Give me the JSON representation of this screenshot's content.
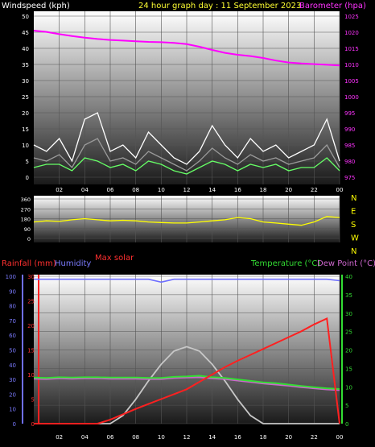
{
  "header": {
    "left_title": "Windspeed (kph)",
    "center_title": "24 hour graph day : 11 September 2023",
    "right_title": "Barometer (hpa)"
  },
  "bottom_header": {
    "rain_label": "Rainfall (mm)",
    "humidity_label": "Humidity",
    "solar_label": "Max solar",
    "temp_label": "Temperature (°C)",
    "dew_label": "Dew Point (°C)"
  },
  "colors": {
    "wind_gust": "#ffffff",
    "wind_avg": "#9a9a9a",
    "wind_low": "#66ff66",
    "barometer": "#ff00ff",
    "direction": "#ffff00",
    "rainfall": "#ff2020",
    "humidity": "#6f6fff",
    "temperature": "#33dd33",
    "dewpoint": "#cc66cc",
    "solar": "#c8c8c8"
  },
  "chart_data": [
    {
      "type": "line",
      "title": "24 hour graph day : 11 September 2023",
      "x_ticks": [
        "02",
        "04",
        "06",
        "08",
        "10",
        "12",
        "14",
        "16",
        "18",
        "20",
        "22",
        "00"
      ],
      "x": [
        0,
        1,
        2,
        3,
        4,
        5,
        6,
        7,
        8,
        9,
        10,
        11,
        12,
        13,
        14,
        15,
        16,
        17,
        18,
        19,
        20,
        21,
        22,
        23,
        24
      ],
      "left_axis": {
        "label": "Windspeed (kph)",
        "ticks": [
          "0",
          "5",
          "10",
          "15",
          "20",
          "25",
          "30",
          "35",
          "40",
          "45",
          "50"
        ],
        "ylim": [
          0,
          50
        ]
      },
      "right_axis": {
        "label": "Barometer (hpa)",
        "ticks": [
          "975",
          "980",
          "985",
          "990",
          "995",
          "1000",
          "1005",
          "1010",
          "1015",
          "1020",
          "1025"
        ],
        "ylim": [
          975,
          1025
        ]
      },
      "series": [
        {
          "name": "Windspeed (kph)",
          "axis": "left",
          "kind": "gust",
          "values": [
            10,
            8,
            12,
            5,
            18,
            20,
            8,
            10,
            6,
            14,
            10,
            6,
            4,
            8,
            16,
            10,
            6,
            12,
            8,
            10,
            6,
            8,
            10,
            18,
            5
          ]
        },
        {
          "name": "Windspeed (kph)",
          "axis": "left",
          "kind": "average",
          "values": [
            6,
            5,
            7,
            3,
            10,
            12,
            5,
            6,
            4,
            8,
            6,
            4,
            2,
            5,
            9,
            6,
            4,
            7,
            5,
            6,
            4,
            5,
            6,
            10,
            3
          ]
        },
        {
          "name": "Windspeed (kph)",
          "axis": "left",
          "kind": "low",
          "values": [
            3,
            4,
            4,
            2,
            6,
            5,
            3,
            4,
            2,
            5,
            4,
            2,
            1,
            3,
            5,
            4,
            2,
            4,
            3,
            4,
            2,
            3,
            3,
            6,
            2
          ]
        },
        {
          "name": "Barometer (hpa)",
          "axis": "right",
          "values": [
            1020.5,
            1020.1,
            1019.4,
            1018.8,
            1018.3,
            1017.9,
            1017.6,
            1017.4,
            1017.2,
            1017.0,
            1016.9,
            1016.7,
            1016.3,
            1015.5,
            1014.5,
            1013.6,
            1013.0,
            1012.6,
            1012.0,
            1011.2,
            1010.6,
            1010.3,
            1010.1,
            1009.9,
            1009.7
          ]
        }
      ]
    },
    {
      "type": "scatter",
      "x_ticks": [
        "02",
        "04",
        "06",
        "08",
        "10",
        "12",
        "14",
        "16",
        "18",
        "20",
        "22",
        "00"
      ],
      "left_axis": {
        "ticks": [
          "0",
          "90",
          "180",
          "270",
          "360"
        ],
        "ylim": [
          0,
          360
        ]
      },
      "right_axis": {
        "ticks": [
          "N",
          "W",
          "S",
          "E",
          "N"
        ]
      },
      "series": [
        {
          "name": "Wind direction",
          "x": [
            0,
            1,
            2,
            3,
            4,
            5,
            6,
            7,
            8,
            9,
            10,
            11,
            12,
            13,
            14,
            15,
            16,
            17,
            18,
            19,
            20,
            21,
            22,
            23,
            24
          ],
          "values": [
            150,
            160,
            155,
            170,
            180,
            170,
            160,
            165,
            160,
            150,
            145,
            140,
            140,
            150,
            160,
            170,
            190,
            180,
            150,
            140,
            130,
            120,
            150,
            200,
            190
          ]
        }
      ]
    },
    {
      "type": "line",
      "x_ticks": [
        "02",
        "04",
        "06",
        "08",
        "10",
        "12",
        "14",
        "16",
        "18",
        "20",
        "22",
        "00"
      ],
      "x": [
        0,
        1,
        2,
        3,
        4,
        5,
        6,
        7,
        8,
        9,
        10,
        11,
        12,
        13,
        14,
        15,
        16,
        17,
        18,
        19,
        20,
        21,
        22,
        23,
        24
      ],
      "left_axis_humidity": {
        "label": "Humidity",
        "ticks": [
          "0",
          "10",
          "20",
          "30",
          "40",
          "50",
          "60",
          "70",
          "80",
          "90",
          "100"
        ],
        "ylim": [
          0,
          100
        ]
      },
      "left_axis_rain": {
        "label": "Rainfall (mm)",
        "ticks": [
          "0",
          "5",
          "10",
          "15",
          "20",
          "25",
          "30"
        ],
        "ylim": [
          0,
          30
        ]
      },
      "right_axis": {
        "label": "Temperature (°C)",
        "ticks": [
          "0",
          "5",
          "10",
          "15",
          "20",
          "25",
          "30",
          "35",
          "40"
        ],
        "ylim": [
          0,
          40
        ]
      },
      "series": [
        {
          "name": "Humidity",
          "axis": "humidity",
          "values": [
            98,
            98,
            98,
            98,
            98,
            98,
            98,
            98,
            98,
            98,
            96,
            98,
            98,
            98,
            98,
            98,
            98,
            98,
            98,
            98,
            98,
            98,
            98,
            98,
            97
          ]
        },
        {
          "name": "Rainfall (mm)",
          "axis": "rain",
          "values": [
            0,
            0,
            0,
            0,
            0,
            0,
            0.8,
            1.9,
            3.0,
            4.0,
            5.0,
            6.0,
            7.0,
            8.5,
            10.0,
            11.5,
            12.8,
            14.0,
            15.2,
            16.4,
            17.6,
            18.8,
            20.2,
            21.4,
            0
          ]
        },
        {
          "name": "Temperature (°C)",
          "axis": "right",
          "values": [
            12.5,
            12.4,
            12.6,
            12.5,
            12.6,
            12.6,
            12.5,
            12.5,
            12.5,
            12.4,
            12.4,
            12.7,
            12.8,
            13.0,
            12.6,
            12.4,
            12.0,
            11.6,
            11.2,
            11.0,
            10.6,
            10.2,
            9.9,
            9.6,
            9.4
          ]
        },
        {
          "name": "Dew Point (°C)",
          "axis": "right",
          "values": [
            12.2,
            12.1,
            12.3,
            12.2,
            12.3,
            12.3,
            12.2,
            12.2,
            12.2,
            12.1,
            12.1,
            12.4,
            12.5,
            12.6,
            12.3,
            12.1,
            11.7,
            11.3,
            10.9,
            10.6,
            10.3,
            9.9,
            9.6,
            9.3,
            9.1
          ]
        },
        {
          "name": "Max solar",
          "axis": "right",
          "values": [
            0,
            0,
            0,
            0,
            0,
            0,
            0,
            2.2,
            6.6,
            11.6,
            16.1,
            19.7,
            20.9,
            19.7,
            16.1,
            11.6,
            6.6,
            2.2,
            0,
            0,
            0,
            0,
            0,
            0,
            0
          ]
        }
      ]
    }
  ]
}
